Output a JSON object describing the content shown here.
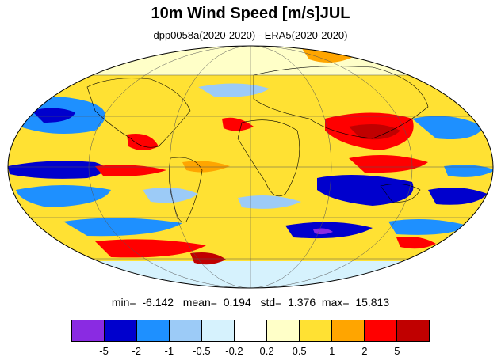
{
  "title": "10m Wind Speed [m/s]JUL",
  "subtitle": "dpp0058a(2020-2020) - ERA5(2020-2020)",
  "stats": {
    "min_label": "min=",
    "min_value": "-6.142",
    "mean_label": "mean=",
    "mean_value": "0.194",
    "std_label": "std=",
    "std_value": "1.376",
    "max_label": "max=",
    "max_value": "15.813"
  },
  "colorbar": {
    "colors": [
      "#8a2be2",
      "#0000cd",
      "#1e90ff",
      "#9ccbf7",
      "#d6f2fd",
      "#ffffff",
      "#ffffc8",
      "#ffe133",
      "#ffa500",
      "#ff0000",
      "#c00000"
    ],
    "ticks": [
      "-5",
      "-2",
      "-1",
      "-0.5",
      "-0.2",
      "0.2",
      "0.5",
      "1",
      "2",
      "5"
    ]
  },
  "map": {
    "projection": "mollweide",
    "graticule": true,
    "coastlines": true
  }
}
